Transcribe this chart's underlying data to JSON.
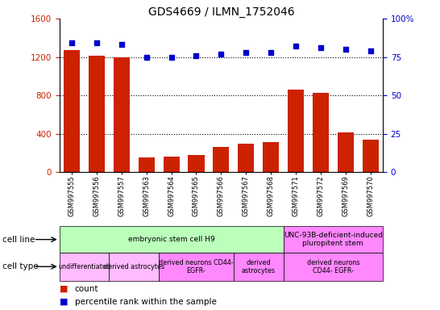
{
  "title": "GDS4669 / ILMN_1752046",
  "samples": [
    "GSM997555",
    "GSM997556",
    "GSM997557",
    "GSM997563",
    "GSM997564",
    "GSM997565",
    "GSM997566",
    "GSM997567",
    "GSM997568",
    "GSM997571",
    "GSM997572",
    "GSM997569",
    "GSM997570"
  ],
  "counts": [
    1270,
    1215,
    1200,
    155,
    165,
    175,
    265,
    295,
    315,
    860,
    825,
    415,
    340
  ],
  "percentiles": [
    84,
    84,
    83,
    75,
    75,
    76,
    77,
    78,
    78,
    82,
    81,
    80,
    79
  ],
  "ylim_left": [
    0,
    1600
  ],
  "ylim_right": [
    0,
    100
  ],
  "yticks_left": [
    0,
    400,
    800,
    1200,
    1600
  ],
  "ytick_labels_left": [
    "0",
    "400",
    "800",
    "1200",
    "1600"
  ],
  "yticks_right": [
    0,
    25,
    50,
    75,
    100
  ],
  "ytick_labels_right": [
    "0",
    "25",
    "50",
    "75",
    "100%"
  ],
  "bar_color": "#cc2200",
  "dot_color": "#0000cc",
  "cell_line_groups": [
    {
      "label": "embryonic stem cell H9",
      "start": 0,
      "end": 9,
      "color": "#bbffbb"
    },
    {
      "label": "UNC-93B-deficient-induced\npluropitent stem",
      "start": 9,
      "end": 13,
      "color": "#ff88ff"
    }
  ],
  "cell_type_groups": [
    {
      "label": "undifferentiated",
      "start": 0,
      "end": 2,
      "color": "#ffbbff"
    },
    {
      "label": "derived astrocytes",
      "start": 2,
      "end": 4,
      "color": "#ffbbff"
    },
    {
      "label": "derived neurons CD44-\nEGFR-",
      "start": 4,
      "end": 7,
      "color": "#ff88ff"
    },
    {
      "label": "derived\nastrocytes",
      "start": 7,
      "end": 9,
      "color": "#ff88ff"
    },
    {
      "label": "derived neurons\nCD44- EGFR-",
      "start": 9,
      "end": 13,
      "color": "#ff88ff"
    }
  ],
  "legend_count_color": "#cc2200",
  "legend_dot_color": "#0000cc",
  "background_color": "#ffffff",
  "tick_label_color_left": "#cc2200",
  "tick_label_color_right": "#0000cc",
  "grid_yticks": [
    400,
    800,
    1200
  ]
}
